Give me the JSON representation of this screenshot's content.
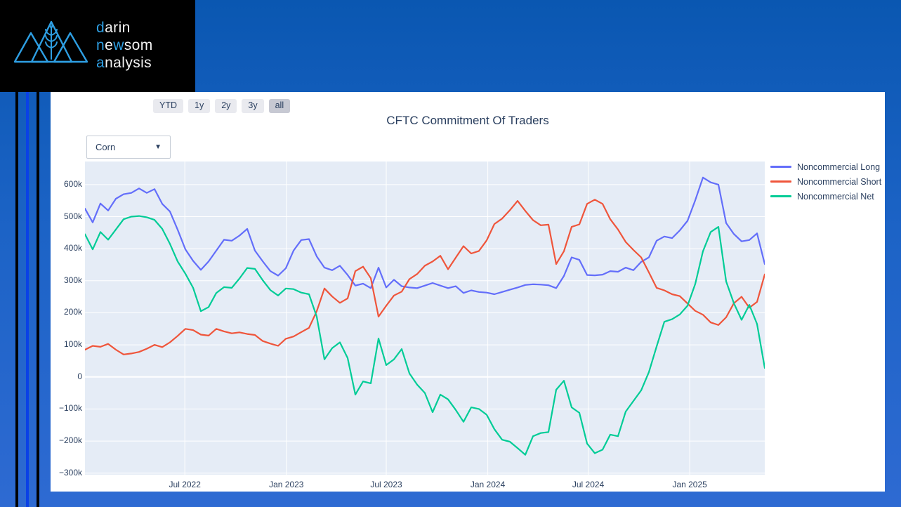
{
  "accent_colors": {
    "logo_blue": "#2e9fe3",
    "page_blue_top": "#0a57b1",
    "page_blue_bottom": "#2e6ad2",
    "stripe_blue": "#0a41e6",
    "text_navy": "#2a3f5f"
  },
  "logo": {
    "lines": [
      [
        [
          "d",
          "acc"
        ],
        [
          "arin",
          "plain"
        ]
      ],
      [
        [
          "n",
          "acc"
        ],
        [
          "e",
          "plain"
        ],
        [
          "w",
          "acc"
        ],
        [
          "som",
          "plain"
        ]
      ],
      [
        [
          "a",
          "acc"
        ],
        [
          "nalysis",
          "plain"
        ]
      ]
    ]
  },
  "toolbar": {
    "range_buttons": [
      {
        "label": "YTD",
        "active": false
      },
      {
        "label": "1y",
        "active": false
      },
      {
        "label": "2y",
        "active": false
      },
      {
        "label": "3y",
        "active": false
      },
      {
        "label": "all",
        "active": true
      }
    ]
  },
  "dropdown": {
    "value": "Corn",
    "icon": "▼"
  },
  "chart_data": {
    "type": "line",
    "title": "CFTC Commitment Of Traders",
    "xlabel": "",
    "ylabel": "",
    "values_unit": "contracts, thousands (k)",
    "plot_bg": "#e5ecf6",
    "grid": true,
    "grid_color": "#ffffff",
    "legend_position": "right-top",
    "x_range": [
      "2022-01-01",
      "2025-05-17"
    ],
    "y_range_k": [
      -305,
      672
    ],
    "y_ticks": [
      {
        "value": -300,
        "label": "−300k"
      },
      {
        "value": -200,
        "label": "−200k"
      },
      {
        "value": -100,
        "label": "−100k"
      },
      {
        "value": 0,
        "label": "0"
      },
      {
        "value": 100,
        "label": "100k"
      },
      {
        "value": 200,
        "label": "200k"
      },
      {
        "value": 300,
        "label": "300k"
      },
      {
        "value": 400,
        "label": "400k"
      },
      {
        "value": 500,
        "label": "500k"
      },
      {
        "value": 600,
        "label": "600k"
      }
    ],
    "x_ticks": [
      {
        "date": "2022-07-01",
        "label": "Jul 2022"
      },
      {
        "date": "2023-01-01",
        "label": "Jan 2023"
      },
      {
        "date": "2023-07-01",
        "label": "Jul 2023"
      },
      {
        "date": "2024-01-01",
        "label": "Jan 2024"
      },
      {
        "date": "2024-07-01",
        "label": "Jul 2024"
      },
      {
        "date": "2025-01-01",
        "label": "Jan 2025"
      }
    ],
    "dates": [
      "2022-01-01",
      "2022-01-15",
      "2022-01-29",
      "2022-02-12",
      "2022-02-26",
      "2022-03-12",
      "2022-03-26",
      "2022-04-09",
      "2022-04-23",
      "2022-05-07",
      "2022-05-21",
      "2022-06-04",
      "2022-06-18",
      "2022-07-02",
      "2022-07-16",
      "2022-07-30",
      "2022-08-13",
      "2022-08-27",
      "2022-09-10",
      "2022-09-24",
      "2022-10-08",
      "2022-10-22",
      "2022-11-05",
      "2022-11-19",
      "2022-12-03",
      "2022-12-17",
      "2022-12-31",
      "2023-01-14",
      "2023-01-28",
      "2023-02-11",
      "2023-02-25",
      "2023-03-11",
      "2023-03-25",
      "2023-04-08",
      "2023-04-22",
      "2023-05-06",
      "2023-05-20",
      "2023-06-03",
      "2023-06-17",
      "2023-07-01",
      "2023-07-15",
      "2023-07-29",
      "2023-08-12",
      "2023-08-26",
      "2023-09-09",
      "2023-09-23",
      "2023-10-07",
      "2023-10-21",
      "2023-11-04",
      "2023-11-18",
      "2023-12-02",
      "2023-12-16",
      "2023-12-30",
      "2024-01-13",
      "2024-01-27",
      "2024-02-10",
      "2024-02-24",
      "2024-03-09",
      "2024-03-23",
      "2024-04-06",
      "2024-04-20",
      "2024-05-04",
      "2024-05-18",
      "2024-06-01",
      "2024-06-15",
      "2024-06-29",
      "2024-07-13",
      "2024-07-27",
      "2024-08-10",
      "2024-08-24",
      "2024-09-07",
      "2024-09-21",
      "2024-10-05",
      "2024-10-19",
      "2024-11-02",
      "2024-11-16",
      "2024-11-30",
      "2024-12-14",
      "2024-12-28",
      "2025-01-11",
      "2025-01-25",
      "2025-02-08",
      "2025-02-22",
      "2025-03-08",
      "2025-03-22",
      "2025-04-05",
      "2025-04-19",
      "2025-05-03",
      "2025-05-17"
    ],
    "series": [
      {
        "name": "Noncommercial Long",
        "color": "#636efa",
        "values": [
          525,
          482,
          541,
          519,
          556,
          570,
          574,
          588,
          574,
          586,
          540,
          516,
          459,
          398,
          362,
          334,
          360,
          394,
          428,
          425,
          441,
          462,
          394,
          361,
          330,
          316,
          339,
          394,
          427,
          430,
          376,
          341,
          333,
          347,
          318,
          285,
          291,
          277,
          341,
          279,
          303,
          283,
          279,
          277,
          285,
          293,
          285,
          277,
          283,
          262,
          270,
          265,
          263,
          258,
          265,
          272,
          279,
          287,
          289,
          288,
          286,
          277,
          315,
          373,
          365,
          318,
          317,
          319,
          330,
          328,
          341,
          333,
          359,
          373,
          425,
          438,
          433,
          457,
          487,
          551,
          622,
          607,
          600,
          480,
          446,
          423,
          427,
          448,
          352
        ]
      },
      {
        "name": "Noncommercial Short",
        "color": "#ef553b",
        "values": [
          85,
          97,
          94,
          103,
          85,
          70,
          73,
          78,
          88,
          100,
          93,
          108,
          128,
          150,
          146,
          132,
          129,
          150,
          142,
          136,
          139,
          134,
          131,
          112,
          104,
          97,
          119,
          126,
          140,
          153,
          205,
          276,
          251,
          231,
          245,
          330,
          344,
          308,
          188,
          222,
          254,
          266,
          305,
          321,
          347,
          360,
          378,
          336,
          372,
          408,
          385,
          393,
          426,
          477,
          494,
          520,
          549,
          518,
          489,
          473,
          475,
          352,
          392,
          468,
          476,
          540,
          553,
          540,
          492,
          460,
          421,
          396,
          373,
          326,
          278,
          270,
          258,
          252,
          229,
          206,
          194,
          170,
          162,
          186,
          230,
          250,
          216,
          234,
          320
        ]
      },
      {
        "name": "Noncommercial Net",
        "color": "#00cc96",
        "values": [
          445,
          398,
          452,
          428,
          460,
          492,
          500,
          502,
          498,
          490,
          462,
          415,
          360,
          322,
          278,
          205,
          218,
          262,
          280,
          278,
          307,
          340,
          337,
          302,
          271,
          254,
          276,
          274,
          263,
          258,
          188,
          55,
          90,
          108,
          59,
          -55,
          -14,
          -20,
          120,
          37,
          55,
          87,
          11,
          -24,
          -50,
          -110,
          -55,
          -70,
          -103,
          -140,
          -95,
          -100,
          -118,
          -163,
          -196,
          -202,
          -222,
          -243,
          -185,
          -175,
          -172,
          -40,
          -12,
          -95,
          -112,
          -208,
          -238,
          -227,
          -180,
          -185,
          -108,
          -75,
          -42,
          15,
          95,
          172,
          180,
          195,
          222,
          290,
          392,
          452,
          468,
          298,
          230,
          178,
          225,
          165,
          28
        ]
      }
    ]
  }
}
